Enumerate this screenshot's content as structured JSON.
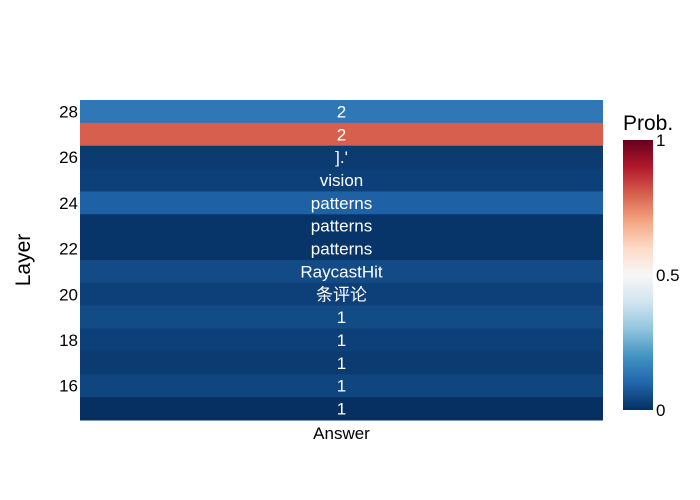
{
  "chart_data": {
    "type": "heatmap",
    "title": "",
    "xlabel": "",
    "ylabel": "Layer",
    "x_categories": [
      "Answer"
    ],
    "y_ticks": [
      16,
      18,
      20,
      22,
      24,
      26,
      28
    ],
    "rows": [
      {
        "layer": 28,
        "label": "2",
        "prob": 0.14
      },
      {
        "layer": 27,
        "label": "2",
        "prob": 0.8
      },
      {
        "layer": 26,
        "label": "].'",
        "prob": 0.02
      },
      {
        "layer": 25,
        "label": "vision",
        "prob": 0.03
      },
      {
        "layer": 24,
        "label": "patterns",
        "prob": 0.09
      },
      {
        "layer": 23,
        "label": "patterns",
        "prob": 0.01
      },
      {
        "layer": 22,
        "label": "patterns",
        "prob": 0.01
      },
      {
        "layer": 21,
        "label": "RaycastHit",
        "prob": 0.05
      },
      {
        "layer": 20,
        "label": "条评论",
        "prob": 0.03
      },
      {
        "layer": 19,
        "label": "1",
        "prob": 0.05
      },
      {
        "layer": 18,
        "label": "1",
        "prob": 0.03
      },
      {
        "layer": 17,
        "label": "1",
        "prob": 0.02
      },
      {
        "layer": 16,
        "label": "1",
        "prob": 0.04
      },
      {
        "layer": 15,
        "label": "1",
        "prob": 0.0
      }
    ],
    "colorbar": {
      "title": "Prob.",
      "range": [
        0,
        1
      ],
      "ticks": [
        0,
        0.5,
        1
      ],
      "tick_labels": [
        "0",
        "0.5",
        "1"
      ],
      "colorscale": [
        [
          0.0,
          "#053061"
        ],
        [
          0.1,
          "#2166ac"
        ],
        [
          0.2,
          "#4393c3"
        ],
        [
          0.3,
          "#92c5de"
        ],
        [
          0.4,
          "#d1e5f0"
        ],
        [
          0.5,
          "#f7f7f7"
        ],
        [
          0.6,
          "#fddbc7"
        ],
        [
          0.7,
          "#f4a582"
        ],
        [
          0.8,
          "#d6604d"
        ],
        [
          0.9,
          "#b2182b"
        ],
        [
          1.0,
          "#67001f"
        ]
      ]
    }
  }
}
